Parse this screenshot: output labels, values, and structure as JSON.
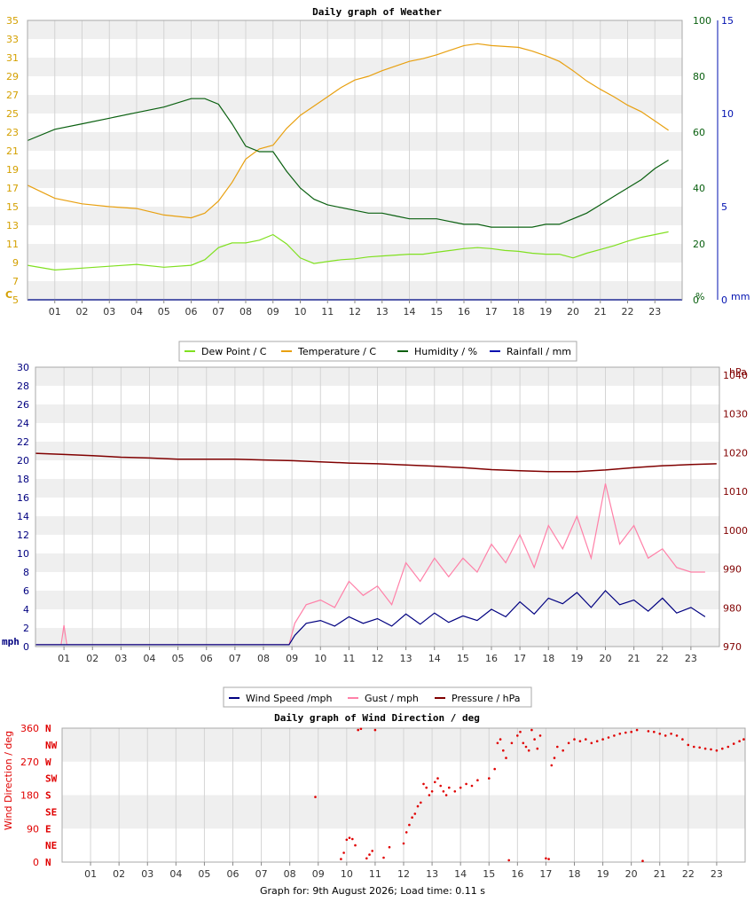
{
  "colors": {
    "dew": "#80e020",
    "temp": "#e8a010",
    "hum": "#0a6010",
    "rain": "#0010b0",
    "wind": "#000080",
    "gust": "#ff80a8",
    "pressure": "#800000",
    "dir": "#e00000",
    "axis_left": "#d4a000",
    "band": "#efefef",
    "grid": "#d4d4d4"
  },
  "hours": [
    "01",
    "02",
    "03",
    "04",
    "05",
    "06",
    "07",
    "08",
    "09",
    "10",
    "11",
    "12",
    "13",
    "14",
    "15",
    "16",
    "17",
    "18",
    "19",
    "20",
    "21",
    "22",
    "23"
  ],
  "footer": "Graph for: 9th August 2026; Load time: 0.11 s",
  "chart_data": [
    {
      "type": "line",
      "title": "Daily graph of Weather",
      "x_unit": "hour of day",
      "xlim": [
        0,
        24
      ],
      "axes": {
        "left": {
          "label": "C",
          "ylim": [
            5,
            35
          ],
          "ticks": [
            5,
            7,
            9,
            11,
            13,
            15,
            17,
            19,
            21,
            23,
            25,
            27,
            29,
            31,
            33,
            35
          ]
        },
        "right1": {
          "label": "%",
          "ylim": [
            0,
            100
          ],
          "ticks": [
            0,
            20,
            40,
            60,
            80,
            100
          ]
        },
        "right2": {
          "label": "mm",
          "ylim": [
            0,
            15
          ],
          "ticks": [
            0,
            5,
            10,
            15
          ]
        }
      },
      "legend": [
        "Dew Point / C",
        "Temperature / C",
        "Humidity / %",
        "Rainfall / mm"
      ],
      "series": [
        {
          "name": "Temperature / C",
          "axis": "left",
          "x": [
            0,
            1,
            2,
            3,
            4,
            5,
            6,
            6.5,
            7,
            7.5,
            8,
            8.5,
            9,
            9.5,
            10,
            10.5,
            11,
            11.5,
            12,
            12.5,
            13,
            13.5,
            14,
            14.5,
            15,
            15.5,
            16,
            16.5,
            17,
            17.5,
            18,
            18.5,
            19,
            19.5,
            20,
            20.5,
            21,
            21.5,
            22,
            22.5,
            23,
            23.5
          ],
          "y": [
            17.3,
            15.9,
            15.3,
            15.0,
            14.8,
            14.1,
            13.8,
            14.3,
            15.6,
            17.6,
            20.1,
            21.2,
            21.6,
            23.4,
            24.8,
            25.8,
            26.8,
            27.8,
            28.6,
            29.0,
            29.6,
            30.1,
            30.6,
            30.9,
            31.3,
            31.8,
            32.3,
            32.5,
            32.3,
            32.2,
            32.1,
            31.7,
            31.2,
            30.6,
            29.6,
            28.5,
            27.6,
            26.8,
            25.9,
            25.2,
            24.2,
            23.2
          ]
        },
        {
          "name": "Dew Point / C",
          "axis": "left",
          "x": [
            0,
            1,
            2,
            3,
            4,
            5,
            6,
            6.5,
            7,
            7.5,
            8,
            8.5,
            9,
            9.5,
            10,
            10.5,
            11,
            11.5,
            12,
            12.5,
            13,
            13.5,
            14,
            14.5,
            15,
            15.5,
            16,
            16.5,
            17,
            17.5,
            18,
            18.5,
            19,
            19.5,
            20,
            20.5,
            21,
            21.5,
            22,
            22.5,
            23,
            23.5
          ],
          "y": [
            8.7,
            8.2,
            8.4,
            8.6,
            8.8,
            8.5,
            8.7,
            9.3,
            10.6,
            11.1,
            11.1,
            11.4,
            12.0,
            11.0,
            9.5,
            8.9,
            9.1,
            9.3,
            9.4,
            9.6,
            9.7,
            9.8,
            9.9,
            9.9,
            10.1,
            10.3,
            10.5,
            10.6,
            10.5,
            10.3,
            10.2,
            10.0,
            9.9,
            9.9,
            9.5,
            10.0,
            10.4,
            10.8,
            11.3,
            11.7,
            12.0,
            12.3
          ]
        },
        {
          "name": "Humidity / %",
          "axis": "right1",
          "x": [
            0,
            1,
            2,
            3,
            4,
            5,
            6,
            6.5,
            7,
            7.5,
            8,
            8.5,
            9,
            9.5,
            10,
            10.5,
            11,
            11.5,
            12,
            12.5,
            13,
            13.5,
            14,
            14.5,
            15,
            15.5,
            16,
            16.5,
            17,
            17.5,
            18,
            18.5,
            19,
            19.5,
            20,
            20.5,
            21,
            21.5,
            22,
            22.5,
            23,
            23.5
          ],
          "y": [
            57,
            61,
            63,
            65,
            67,
            69,
            72,
            72,
            70,
            63,
            55,
            53,
            53,
            46,
            40,
            36,
            34,
            33,
            32,
            31,
            31,
            30,
            29,
            29,
            29,
            28,
            27,
            27,
            26,
            26,
            26,
            26,
            27,
            27,
            29,
            31,
            34,
            37,
            40,
            43,
            47,
            50
          ]
        },
        {
          "name": "Rainfall / mm",
          "axis": "right2",
          "x": [
            0,
            24
          ],
          "y": [
            0,
            0
          ]
        }
      ]
    },
    {
      "type": "line",
      "title": "",
      "x_unit": "hour of day",
      "xlim": [
        0,
        24
      ],
      "axes": {
        "left": {
          "label": "mph",
          "ylim": [
            0,
            30
          ],
          "ticks": [
            0,
            2,
            4,
            6,
            8,
            10,
            12,
            14,
            16,
            18,
            20,
            22,
            24,
            26,
            28,
            30
          ]
        },
        "right": {
          "label": "hPa",
          "ylim": [
            970,
            1042
          ],
          "ticks": [
            970,
            980,
            990,
            1000,
            1010,
            1020,
            1030,
            1040
          ]
        }
      },
      "legend": [
        "Wind Speed /mph",
        "Gust / mph",
        "Pressure / hPa"
      ],
      "series": [
        {
          "name": "Wind Speed /mph",
          "axis": "left",
          "x": [
            0,
            8.9,
            9.1,
            9.5,
            10,
            10.5,
            11,
            11.5,
            12,
            12.5,
            13,
            13.5,
            14,
            14.5,
            15,
            15.5,
            16,
            16.5,
            17,
            17.5,
            18,
            18.5,
            19,
            19.5,
            20,
            20.5,
            21,
            21.5,
            22,
            22.5,
            23,
            23.5
          ],
          "y": [
            0.2,
            0.2,
            1.2,
            2.5,
            2.8,
            2.2,
            3.2,
            2.5,
            3.0,
            2.2,
            3.5,
            2.4,
            3.6,
            2.6,
            3.3,
            2.8,
            4.0,
            3.2,
            4.8,
            3.5,
            5.2,
            4.6,
            5.8,
            4.2,
            6.0,
            4.5,
            5.0,
            3.8,
            5.2,
            3.6,
            4.2,
            3.2
          ]
        },
        {
          "name": "Gust / mph",
          "axis": "left",
          "x": [
            0,
            0.9,
            1.0,
            1.1,
            8.9,
            9.1,
            9.5,
            10,
            10.5,
            11,
            11.5,
            12,
            12.5,
            13,
            13.5,
            14,
            14.5,
            15,
            15.5,
            16,
            16.5,
            17,
            17.5,
            18,
            18.5,
            19,
            19.5,
            20,
            20.5,
            21,
            21.5,
            22,
            22.5,
            23,
            23.5
          ],
          "y": [
            0.2,
            0.2,
            2.3,
            0.2,
            0.2,
            2.5,
            4.5,
            5.0,
            4.2,
            7.0,
            5.5,
            6.5,
            4.5,
            9.0,
            7.0,
            9.5,
            7.5,
            9.5,
            8.0,
            11.0,
            9.0,
            12.0,
            8.5,
            13.0,
            10.5,
            14.0,
            9.5,
            17.5,
            11.0,
            13.0,
            9.5,
            10.5,
            8.5,
            8.0,
            8.0
          ]
        },
        {
          "name": "Pressure / hPa",
          "axis": "right",
          "x": [
            0,
            1,
            2,
            3,
            4,
            5,
            6,
            7,
            8,
            9,
            10,
            11,
            12,
            13,
            14,
            15,
            16,
            17,
            18,
            19,
            20,
            21,
            22,
            23,
            23.9
          ],
          "y": [
            1019.8,
            1019.5,
            1019.2,
            1018.8,
            1018.6,
            1018.3,
            1018.3,
            1018.3,
            1018.1,
            1017.9,
            1017.6,
            1017.3,
            1017.1,
            1016.8,
            1016.5,
            1016.1,
            1015.6,
            1015.3,
            1015.1,
            1015.1,
            1015.5,
            1016.1,
            1016.6,
            1016.9,
            1017.1
          ]
        }
      ]
    },
    {
      "type": "scatter",
      "title": "Daily graph of Wind Direction / deg",
      "x_unit": "hour of day",
      "xlim": [
        0,
        24
      ],
      "ylabel": "Wind Direction / deg",
      "ylim": [
        0,
        360
      ],
      "yticks": [
        0,
        90,
        180,
        270,
        360
      ],
      "compass": [
        "N",
        "NE",
        "E",
        "SE",
        "S",
        "SW",
        "W",
        "NW",
        "N"
      ],
      "series": [
        {
          "name": "Wind Direction / deg",
          "points": [
            [
              8.9,
              175
            ],
            [
              9.8,
              8
            ],
            [
              9.9,
              25
            ],
            [
              10.0,
              60
            ],
            [
              10.1,
              65
            ],
            [
              10.2,
              62
            ],
            [
              10.3,
              45
            ],
            [
              10.4,
              355
            ],
            [
              10.5,
              358
            ],
            [
              10.7,
              10
            ],
            [
              10.8,
              20
            ],
            [
              10.9,
              30
            ],
            [
              11.0,
              355
            ],
            [
              11.3,
              12
            ],
            [
              11.5,
              40
            ],
            [
              12.0,
              50
            ],
            [
              12.1,
              80
            ],
            [
              12.2,
              100
            ],
            [
              12.3,
              120
            ],
            [
              12.4,
              130
            ],
            [
              12.5,
              150
            ],
            [
              12.6,
              160
            ],
            [
              12.7,
              210
            ],
            [
              12.8,
              200
            ],
            [
              12.9,
              180
            ],
            [
              13.0,
              190
            ],
            [
              13.1,
              215
            ],
            [
              13.2,
              225
            ],
            [
              13.3,
              205
            ],
            [
              13.4,
              190
            ],
            [
              13.5,
              180
            ],
            [
              13.6,
              200
            ],
            [
              13.8,
              190
            ],
            [
              14.0,
              200
            ],
            [
              14.2,
              210
            ],
            [
              14.4,
              205
            ],
            [
              14.6,
              220
            ],
            [
              15.0,
              225
            ],
            [
              15.2,
              250
            ],
            [
              15.3,
              320
            ],
            [
              15.4,
              330
            ],
            [
              15.5,
              300
            ],
            [
              15.6,
              280
            ],
            [
              15.7,
              5
            ],
            [
              15.8,
              320
            ],
            [
              16.0,
              340
            ],
            [
              16.1,
              350
            ],
            [
              16.2,
              320
            ],
            [
              16.3,
              310
            ],
            [
              16.4,
              300
            ],
            [
              16.5,
              355
            ],
            [
              16.6,
              330
            ],
            [
              16.7,
              305
            ],
            [
              16.8,
              340
            ],
            [
              17.0,
              10
            ],
            [
              17.1,
              8
            ],
            [
              17.2,
              260
            ],
            [
              17.3,
              280
            ],
            [
              17.4,
              310
            ],
            [
              17.6,
              300
            ],
            [
              17.8,
              320
            ],
            [
              18.0,
              330
            ],
            [
              18.2,
              325
            ],
            [
              18.4,
              330
            ],
            [
              18.6,
              320
            ],
            [
              18.8,
              325
            ],
            [
              19.0,
              330
            ],
            [
              19.2,
              335
            ],
            [
              19.4,
              340
            ],
            [
              19.6,
              345
            ],
            [
              19.8,
              348
            ],
            [
              20.0,
              350
            ],
            [
              20.2,
              355
            ],
            [
              20.4,
              3
            ],
            [
              20.6,
              352
            ],
            [
              20.8,
              350
            ],
            [
              21.0,
              345
            ],
            [
              21.2,
              340
            ],
            [
              21.4,
              345
            ],
            [
              21.6,
              340
            ],
            [
              21.8,
              330
            ],
            [
              22.0,
              315
            ],
            [
              22.2,
              310
            ],
            [
              22.4,
              308
            ],
            [
              22.6,
              305
            ],
            [
              22.8,
              303
            ],
            [
              23.0,
              300
            ],
            [
              23.2,
              305
            ],
            [
              23.4,
              310
            ],
            [
              23.6,
              318
            ],
            [
              23.8,
              325
            ],
            [
              23.95,
              330
            ]
          ]
        }
      ]
    }
  ]
}
